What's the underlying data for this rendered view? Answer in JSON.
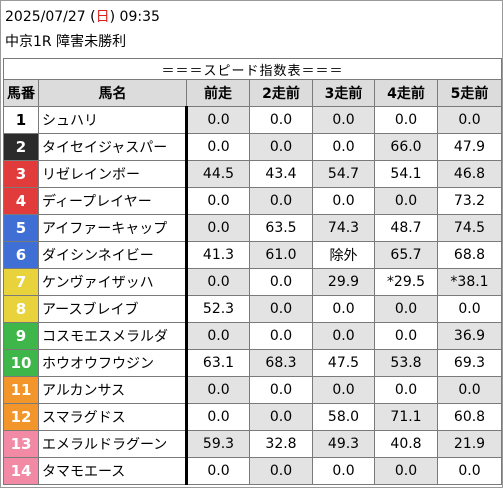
{
  "race": {
    "date": "2025/07/27",
    "weekday": "日",
    "time": "09:35",
    "title": "中京1R 障害未勝利"
  },
  "table": {
    "caption": "＝＝＝スピード指数表＝＝＝",
    "columns": [
      "馬番",
      "馬名",
      "前走",
      "2走前",
      "3走前",
      "4走前",
      "5走前"
    ],
    "rows": [
      {
        "num": "1",
        "name": "シュハリ",
        "v": [
          "0.0",
          "0.0",
          "0.0",
          "0.0",
          "0.0"
        ]
      },
      {
        "num": "2",
        "name": "タイセイジャスパー",
        "v": [
          "0.0",
          "0.0",
          "0.0",
          "66.0",
          "47.9"
        ]
      },
      {
        "num": "3",
        "name": "リゼレインボー",
        "v": [
          "44.5",
          "43.4",
          "54.7",
          "54.1",
          "46.8"
        ]
      },
      {
        "num": "4",
        "name": "ディープレイヤー",
        "v": [
          "0.0",
          "0.0",
          "0.0",
          "0.0",
          "73.2"
        ]
      },
      {
        "num": "5",
        "name": "アイファーキャップ",
        "v": [
          "0.0",
          "63.5",
          "74.3",
          "48.7",
          "74.5"
        ]
      },
      {
        "num": "6",
        "name": "ダイシンネイビー",
        "v": [
          "41.3",
          "61.0",
          "除外",
          "65.7",
          "68.8"
        ]
      },
      {
        "num": "7",
        "name": "ケンヴァイザッハ",
        "v": [
          "0.0",
          "0.0",
          "29.9",
          "*29.5",
          "*38.1"
        ]
      },
      {
        "num": "8",
        "name": "アースブレイブ",
        "v": [
          "52.3",
          "0.0",
          "0.0",
          "0.0",
          "0.0"
        ]
      },
      {
        "num": "9",
        "name": "コスモエスメラルダ",
        "v": [
          "0.0",
          "0.0",
          "0.0",
          "0.0",
          "36.9"
        ]
      },
      {
        "num": "10",
        "name": "ホウオウフウジン",
        "v": [
          "63.1",
          "68.3",
          "47.5",
          "53.8",
          "69.3"
        ]
      },
      {
        "num": "11",
        "name": "アルカンサス",
        "v": [
          "0.0",
          "0.0",
          "0.0",
          "0.0",
          "0.0"
        ]
      },
      {
        "num": "12",
        "name": "スマラグドス",
        "v": [
          "0.0",
          "0.0",
          "58.0",
          "71.1",
          "60.8"
        ]
      },
      {
        "num": "13",
        "name": "エメラルドラグーン",
        "v": [
          "59.3",
          "32.8",
          "49.3",
          "40.8",
          "21.9"
        ]
      },
      {
        "num": "14",
        "name": "タマモエース",
        "v": [
          "0.0",
          "0.0",
          "0.0",
          "0.0",
          "0.0"
        ]
      }
    ]
  },
  "colors": {
    "gate": [
      {
        "bg": "#ffffff",
        "fg": "#000000"
      },
      {
        "bg": "#2b2b2b",
        "fg": "#ffffff"
      },
      {
        "bg": "#e23b3b",
        "fg": "#ffffff"
      },
      {
        "bg": "#e23b3b",
        "fg": "#ffffff"
      },
      {
        "bg": "#3f6fd4",
        "fg": "#ffffff"
      },
      {
        "bg": "#3f6fd4",
        "fg": "#ffffff"
      },
      {
        "bg": "#e9d33c",
        "fg": "#ffffff"
      },
      {
        "bg": "#e9d33c",
        "fg": "#ffffff"
      },
      {
        "bg": "#3fb64a",
        "fg": "#ffffff"
      },
      {
        "bg": "#3fb64a",
        "fg": "#ffffff"
      },
      {
        "bg": "#f2962c",
        "fg": "#ffffff"
      },
      {
        "bg": "#f2962c",
        "fg": "#ffffff"
      },
      {
        "bg": "#f28aa6",
        "fg": "#ffffff"
      },
      {
        "bg": "#f28aa6",
        "fg": "#ffffff"
      }
    ]
  }
}
